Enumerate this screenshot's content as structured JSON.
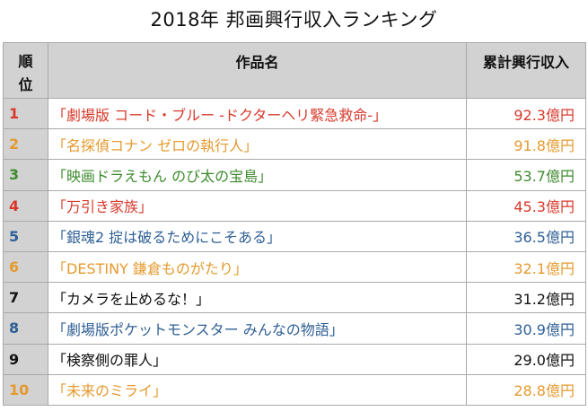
{
  "title": "2018年 邦画興行収入ランキング",
  "headers": {
    "rank_line1": "順",
    "rank_line2": "位",
    "title": "作品名",
    "gross": "累計興行収入"
  },
  "rows": [
    {
      "rank": "1",
      "title": "「劇場版 コード・ブルー -ドクターヘリ緊急救命-」",
      "gross": "92.3億円",
      "color": "#d8382a"
    },
    {
      "rank": "2",
      "title": "「名探偵コナン ゼロの執行人」",
      "gross": "91.8億円",
      "color": "#e59a2e"
    },
    {
      "rank": "3",
      "title": "「映画ドラえもん のび太の宝島」",
      "gross": "53.7億円",
      "color": "#3d8b2e"
    },
    {
      "rank": "4",
      "title": "「万引き家族」",
      "gross": "45.3億円",
      "color": "#d8382a"
    },
    {
      "rank": "5",
      "title": "「銀魂2 掟は破るためにこそある」",
      "gross": "36.5億円",
      "color": "#2f5f95"
    },
    {
      "rank": "6",
      "title": "「DESTINY 鎌倉ものがたり」",
      "gross": "32.1億円",
      "color": "#e59a2e"
    },
    {
      "rank": "7",
      "title": "「カメラを止めるな！」",
      "gross": "31.2億円",
      "color": "#111111"
    },
    {
      "rank": "8",
      "title": "「劇場版ポケットモンスター みんなの物語」",
      "gross": "30.9億円",
      "color": "#2f5f95"
    },
    {
      "rank": "9",
      "title": "「検察側の罪人」",
      "gross": "29.0億円",
      "color": "#111111"
    },
    {
      "rank": "10",
      "title": "「未来のミライ」",
      "gross": "28.8億円",
      "color": "#e59a2e"
    }
  ]
}
